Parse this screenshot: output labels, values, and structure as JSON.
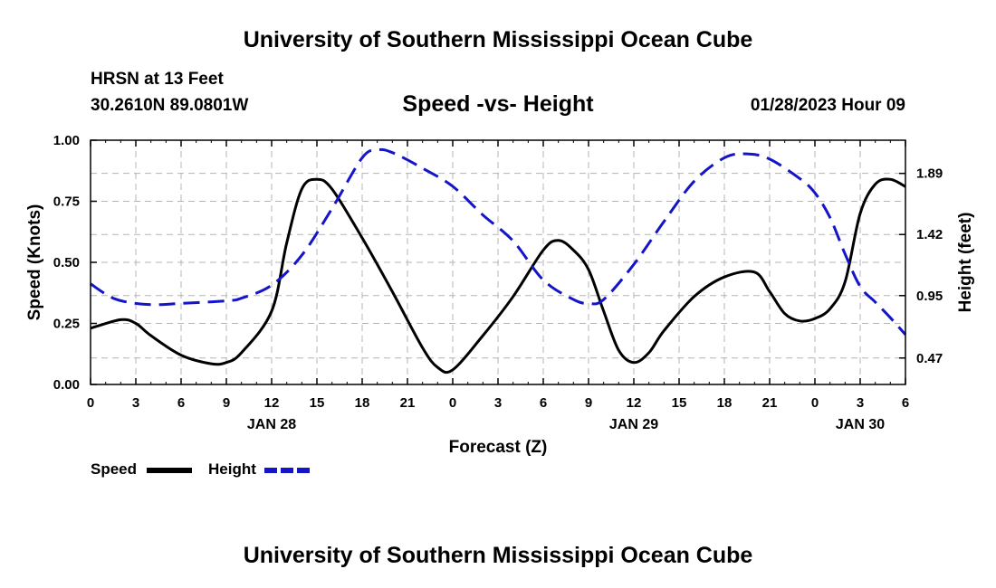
{
  "header": {
    "title_top": "University of Southern Mississippi Ocean Cube",
    "station": "HRSN at 13 Feet",
    "coords": "30.2610N  89.0801W",
    "chart_title": "Speed -vs- Height",
    "datetime": "01/28/2023 Hour 09",
    "title_bottom": "University of Southern Mississippi Ocean Cube"
  },
  "colors": {
    "speed": "#000000",
    "height": "#1414c8",
    "grid": "#b4b4b4"
  },
  "chart_data": {
    "type": "line",
    "xlabel": "Forecast (Z)",
    "ylabel_left": "Speed (Knots)",
    "ylabel_right": "Height (feet)",
    "x_range": [
      0,
      54
    ],
    "x_ticks": [
      0,
      3,
      6,
      9,
      12,
      15,
      18,
      21,
      24,
      27,
      30,
      33,
      36,
      39,
      42,
      45,
      48,
      51,
      54
    ],
    "x_tick_labels": [
      "0",
      "3",
      "6",
      "9",
      "12",
      "15",
      "18",
      "21",
      "0",
      "3",
      "6",
      "9",
      "12",
      "15",
      "18",
      "21",
      "0",
      "3",
      "6"
    ],
    "date_labels": [
      {
        "hour": 12,
        "label": "JAN 28"
      },
      {
        "hour": 36,
        "label": "JAN 29"
      },
      {
        "hour": 51,
        "label": "JAN 30"
      }
    ],
    "ylim_left": [
      0,
      1.0
    ],
    "y_ticks_left": [
      0,
      0.25,
      0.5,
      0.75,
      1.0
    ],
    "y_tick_labels_left": [
      "0.00",
      "0.25",
      "0.50",
      "0.75",
      "1.00"
    ],
    "ylim_right": [
      0.2665,
      2.1452
    ],
    "y_ticks_right": [
      0.47,
      0.95,
      1.42,
      1.89
    ],
    "y_tick_labels_right": [
      "0.47",
      "0.95",
      "1.42",
      "1.89"
    ],
    "grid": true,
    "legend": [
      {
        "name": "Speed",
        "style": "solid"
      },
      {
        "name": "Height",
        "style": "dashed"
      }
    ],
    "series": [
      {
        "name": "Speed",
        "axis": "left",
        "style": "solid",
        "x": [
          0,
          2,
          3,
          4,
          6,
          8,
          9,
          10,
          12,
          13,
          14,
          15,
          16,
          18,
          20,
          22,
          23,
          24,
          26,
          28,
          30,
          31,
          32,
          33,
          34,
          35,
          36,
          37,
          38,
          40,
          42,
          44,
          45,
          46,
          47,
          48,
          49,
          50,
          51,
          52,
          53,
          54
        ],
        "y": [
          0.23,
          0.265,
          0.25,
          0.2,
          0.12,
          0.085,
          0.09,
          0.13,
          0.3,
          0.58,
          0.8,
          0.84,
          0.8,
          0.6,
          0.38,
          0.15,
          0.07,
          0.06,
          0.2,
          0.36,
          0.55,
          0.59,
          0.55,
          0.47,
          0.3,
          0.14,
          0.09,
          0.13,
          0.22,
          0.36,
          0.44,
          0.46,
          0.38,
          0.29,
          0.26,
          0.27,
          0.31,
          0.42,
          0.7,
          0.82,
          0.84,
          0.81
        ]
      },
      {
        "name": "Height",
        "axis": "right",
        "style": "dashed",
        "x": [
          0,
          1.5,
          3,
          4.5,
          6,
          9,
          10,
          12,
          14,
          16,
          18,
          19,
          20,
          22,
          24,
          26,
          28,
          30,
          32,
          33,
          34,
          36,
          38,
          40,
          42,
          43.5,
          45,
          47,
          48,
          49,
          50,
          51,
          52,
          53,
          54
        ],
        "y": [
          1.04,
          0.93,
          0.89,
          0.88,
          0.89,
          0.91,
          0.93,
          1.03,
          1.26,
          1.62,
          2.01,
          2.07,
          2.05,
          1.93,
          1.79,
          1.57,
          1.37,
          1.07,
          0.92,
          0.89,
          0.92,
          1.19,
          1.52,
          1.83,
          2.01,
          2.04,
          2.0,
          1.85,
          1.74,
          1.55,
          1.27,
          1.02,
          0.9,
          0.78,
          0.65
        ]
      }
    ]
  }
}
